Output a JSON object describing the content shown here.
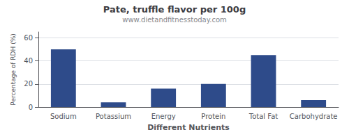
{
  "chart_data": {
    "type": "bar",
    "title": "Pate, truffle flavor per 100g",
    "subtitle": "www.dietandfitnesstoday.com",
    "xlabel": "Different Nutrients",
    "ylabel": "Percentage of RDH (%)",
    "categories": [
      "Sodium",
      "Potassium",
      "Energy",
      "Protein",
      "Total Fat",
      "Carbohydrate"
    ],
    "values": [
      50,
      4,
      16,
      20,
      45,
      6
    ],
    "color": "#2e4b8a",
    "ylim": [
      0,
      65
    ],
    "yticks": [
      0,
      20,
      40,
      60
    ],
    "grid": true
  }
}
